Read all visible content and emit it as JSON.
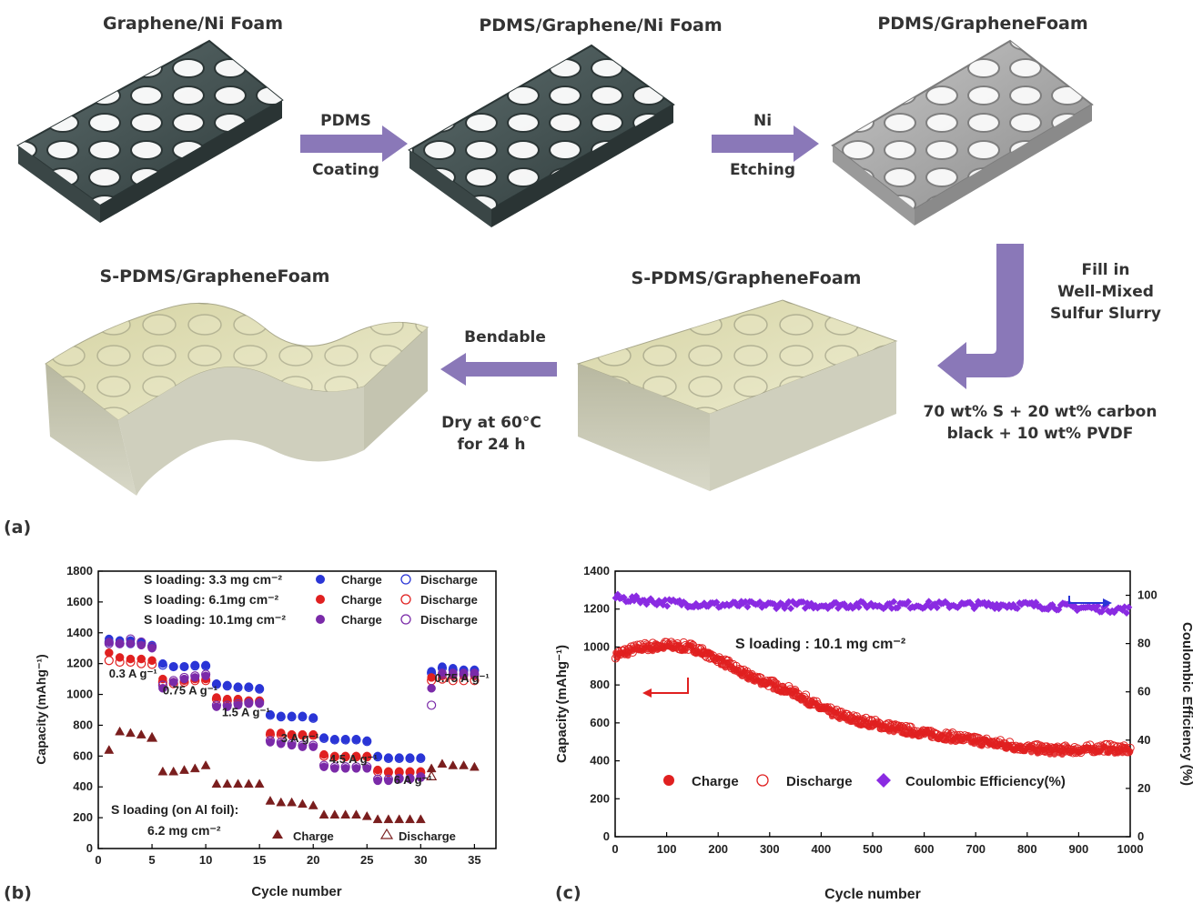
{
  "panel_a": {
    "panel_label": "(a)",
    "step1_title": "Graphene/Ni Foam",
    "step2_title": "PDMS/Graphene/Ni Foam",
    "step3_title": "PDMS/GrapheneFoam",
    "step4_title": "S-PDMS/GrapheneFoam",
    "step5_title": "S-PDMS/GrapheneFoam",
    "arrow1_top": "PDMS",
    "arrow1_bottom": "Coating",
    "arrow2_top": "Ni",
    "arrow2_bottom": "Etching",
    "arrow3_lines": [
      "Fill in",
      "Well-Mixed",
      "Sulfur Slurry"
    ],
    "arrow3_recipe": [
      "70 wt% S + 20 wt% carbon",
      "black + 10 wt% PVDF"
    ],
    "arrow4_top": "Bendable",
    "arrow4_bottom": [
      "Dry at 60°C",
      "for 24 h"
    ],
    "colors": {
      "arrow": "#8a78b8",
      "foam_dark": "#3c4a4a",
      "foam_light": "#a8a8a8",
      "slurry": "#e2e0b8"
    }
  },
  "chart_data": [
    {
      "type": "scatter",
      "panel_label": "(b)",
      "xlabel": "Cycle number",
      "ylabel": "Capacity",
      "ylabel_unit": "(mAhg⁻¹)",
      "xlim": [
        0,
        37
      ],
      "ylim": [
        0,
        1800
      ],
      "xticks": [
        0,
        5,
        10,
        15,
        20,
        25,
        30,
        35
      ],
      "yticks": [
        0,
        200,
        400,
        600,
        800,
        1000,
        1200,
        1400,
        1600,
        1800
      ],
      "legend": [
        {
          "text": "S loading: 3.3 mg cm⁻²",
          "charge": "Charge",
          "discharge": "Discharge",
          "color": "#2a35d6"
        },
        {
          "text": "S loading:  6.1mg cm⁻²",
          "charge": "Charge",
          "discharge": "Discharge",
          "color": "#e02020"
        },
        {
          "text": "S loading: 10.1mg cm⁻²",
          "charge": "Charge",
          "discharge": "Discharge",
          "color": "#7a2aa8"
        }
      ],
      "foil_legend": {
        "line1": "S loading (on Al foil):",
        "line2": "6.2 mg cm⁻²",
        "charge": "Charge",
        "discharge": "Discharge",
        "color": "#7a1e1e"
      },
      "rate_labels": [
        {
          "text": "0.3 A g⁻¹",
          "x": 1,
          "y": 1110
        },
        {
          "text": "0.75 A g⁻¹",
          "x": 6,
          "y": 1000
        },
        {
          "text": "1.5 A g⁻¹",
          "x": 11.5,
          "y": 860
        },
        {
          "text": "3 A g⁻¹",
          "x": 17,
          "y": 690
        },
        {
          "text": "4.5 A g⁻¹",
          "x": 21.5,
          "y": 555
        },
        {
          "text": "6 A g⁻¹",
          "x": 27.5,
          "y": 420
        },
        {
          "text": "0.75 A g⁻¹",
          "x": 31.3,
          "y": 1080
        }
      ],
      "series": [
        {
          "name": "S loading: 3.3 mg cm⁻² Charge",
          "color": "#2a35d6",
          "filled": true,
          "x": [
            1,
            2,
            3,
            4,
            5,
            6,
            7,
            8,
            9,
            10,
            11,
            12,
            13,
            14,
            15,
            16,
            17,
            18,
            19,
            20,
            21,
            22,
            23,
            24,
            25,
            26,
            27,
            28,
            29,
            30,
            31,
            32,
            33,
            34,
            35
          ],
          "y": [
            1360,
            1350,
            1350,
            1340,
            1320,
            1200,
            1180,
            1180,
            1190,
            1190,
            1070,
            1060,
            1050,
            1050,
            1040,
            870,
            860,
            860,
            860,
            850,
            720,
            710,
            710,
            710,
            700,
            600,
            590,
            590,
            590,
            590,
            1150,
            1180,
            1170,
            1160,
            1160
          ]
        },
        {
          "name": "S loading: 3.3 mg cm⁻² Discharge",
          "color": "#2a35d6",
          "filled": false,
          "x": [
            1,
            2,
            3,
            4,
            5,
            6,
            7,
            8,
            9,
            10,
            11,
            12,
            13,
            14,
            15,
            16,
            17,
            18,
            19,
            20,
            21,
            22,
            23,
            24,
            25,
            26,
            27,
            28,
            29,
            30,
            31,
            32,
            33,
            34,
            35
          ],
          "y": [
            1340,
            1330,
            1330,
            1330,
            1310,
            1190,
            1180,
            1180,
            1185,
            1185,
            1065,
            1055,
            1045,
            1045,
            1035,
            865,
            855,
            855,
            855,
            845,
            715,
            705,
            705,
            705,
            695,
            595,
            585,
            585,
            585,
            585,
            1140,
            1170,
            1160,
            1155,
            1155
          ]
        },
        {
          "name": "S loading: 6.1mg cm⁻² Charge",
          "color": "#e02020",
          "filled": true,
          "x": [
            1,
            2,
            3,
            4,
            5,
            6,
            7,
            8,
            9,
            10,
            11,
            12,
            13,
            14,
            15,
            16,
            17,
            18,
            19,
            20,
            21,
            22,
            23,
            24,
            25,
            26,
            27,
            28,
            29,
            30,
            31,
            32,
            33,
            34,
            35
          ],
          "y": [
            1270,
            1240,
            1230,
            1230,
            1220,
            1100,
            1080,
            1090,
            1100,
            1100,
            980,
            970,
            970,
            960,
            960,
            750,
            750,
            740,
            740,
            740,
            610,
            600,
            600,
            600,
            600,
            510,
            500,
            500,
            500,
            500,
            1110,
            1120,
            1120,
            1120,
            1120
          ]
        },
        {
          "name": "S loading: 6.1mg cm⁻² Discharge",
          "color": "#e02020",
          "filled": false,
          "x": [
            1,
            2,
            3,
            4,
            5,
            6,
            7,
            8,
            9,
            10,
            11,
            12,
            13,
            14,
            15,
            16,
            17,
            18,
            19,
            20,
            21,
            22,
            23,
            24,
            25,
            26,
            27,
            28,
            29,
            30,
            31,
            32,
            33,
            34,
            35
          ],
          "y": [
            1220,
            1210,
            1210,
            1200,
            1195,
            1080,
            1070,
            1080,
            1090,
            1090,
            970,
            960,
            960,
            955,
            955,
            740,
            740,
            735,
            735,
            735,
            600,
            595,
            595,
            595,
            595,
            500,
            495,
            495,
            495,
            495,
            1090,
            1100,
            1090,
            1090,
            1090
          ]
        },
        {
          "name": "S loading: 10.1mg cm⁻² Charge",
          "color": "#7a2aa8",
          "filled": true,
          "x": [
            1,
            2,
            3,
            4,
            5,
            6,
            7,
            8,
            9,
            10,
            11,
            12,
            13,
            14,
            15,
            16,
            17,
            18,
            19,
            20,
            21,
            22,
            23,
            24,
            25,
            26,
            27,
            28,
            29,
            30,
            31,
            32,
            33,
            34,
            35
          ],
          "y": [
            1340,
            1330,
            1330,
            1320,
            1300,
            1040,
            1080,
            1100,
            1110,
            1120,
            920,
            920,
            930,
            940,
            940,
            690,
            680,
            670,
            660,
            660,
            530,
            520,
            520,
            520,
            520,
            440,
            440,
            450,
            450,
            460,
            1040,
            1140,
            1140,
            1140,
            1140
          ]
        },
        {
          "name": "S loading: 10.1mg cm⁻² Discharge",
          "color": "#7a2aa8",
          "filled": false,
          "x": [
            1,
            2,
            3,
            4,
            5,
            6,
            7,
            8,
            9,
            10,
            11,
            12,
            13,
            14,
            15,
            16,
            17,
            18,
            19,
            20,
            21,
            22,
            23,
            24,
            25,
            26,
            27,
            28,
            29,
            30,
            31,
            32,
            33,
            34,
            35
          ],
          "y": [
            1330,
            1330,
            1360,
            1340,
            1310,
            1060,
            1090,
            1110,
            1120,
            1130,
            930,
            930,
            940,
            945,
            945,
            700,
            690,
            680,
            670,
            670,
            540,
            530,
            530,
            530,
            530,
            450,
            450,
            455,
            455,
            465,
            930,
            1130,
            1130,
            1130,
            1130
          ]
        },
        {
          "name": "S loading (on Al foil) Charge",
          "color": "#7a1e1e",
          "filled": true,
          "marker": "triangle",
          "x": [
            1,
            2,
            3,
            4,
            5,
            6,
            7,
            8,
            9,
            10,
            11,
            12,
            13,
            14,
            15,
            16,
            17,
            18,
            19,
            20,
            21,
            22,
            23,
            24,
            25,
            26,
            27,
            28,
            29,
            30,
            31,
            32,
            33,
            34,
            35
          ],
          "y": [
            640,
            760,
            750,
            740,
            720,
            500,
            500,
            510,
            520,
            540,
            420,
            420,
            420,
            420,
            420,
            310,
            300,
            300,
            290,
            280,
            220,
            220,
            220,
            220,
            210,
            190,
            190,
            190,
            190,
            190,
            520,
            550,
            540,
            540,
            530
          ]
        },
        {
          "name": "S loading (on Al foil) Discharge",
          "color": "#7a1e1e",
          "filled": false,
          "marker": "triangle",
          "x": [
            5,
            31
          ],
          "y": [
            720,
            470
          ]
        }
      ]
    },
    {
      "type": "scatter",
      "panel_label": "(c)",
      "xlabel": "Cycle number",
      "ylabel": "Capacity",
      "ylabel_unit": "(mAhg⁻¹)",
      "y2label": "Coulombic Efficiency (%)",
      "xlim": [
        0,
        1000
      ],
      "ylim": [
        0,
        1400
      ],
      "y2lim": [
        0,
        110
      ],
      "xticks": [
        0,
        100,
        200,
        300,
        400,
        500,
        600,
        700,
        800,
        900,
        1000
      ],
      "yticks": [
        0,
        200,
        400,
        600,
        800,
        1000,
        1200,
        1400
      ],
      "y2ticks": [
        0,
        20,
        40,
        60,
        80,
        100
      ],
      "annotation": "S loading : 10.1 mg cm⁻²",
      "legend": {
        "charge": "Charge",
        "discharge": "Discharge",
        "ce": "Coulombic Efficiency(%)"
      },
      "colors": {
        "capacity": "#e02020",
        "ce": "#8a2be2"
      },
      "capacity_profile": {
        "x": [
          0,
          50,
          100,
          150,
          200,
          250,
          300,
          350,
          400,
          450,
          500,
          550,
          600,
          650,
          700,
          750,
          800,
          850,
          900,
          950,
          1000
        ],
        "y": [
          960,
          1000,
          1010,
          1000,
          940,
          860,
          810,
          760,
          680,
          630,
          600,
          570,
          550,
          530,
          510,
          490,
          470,
          460,
          460,
          470,
          460
        ]
      },
      "ce_profile": {
        "x": [
          0,
          50,
          100,
          200,
          300,
          400,
          500,
          600,
          700,
          800,
          900,
          1000
        ],
        "y": [
          99,
          98,
          97,
          96,
          96,
          96,
          96,
          96,
          96,
          96,
          95,
          94
        ]
      }
    }
  ]
}
